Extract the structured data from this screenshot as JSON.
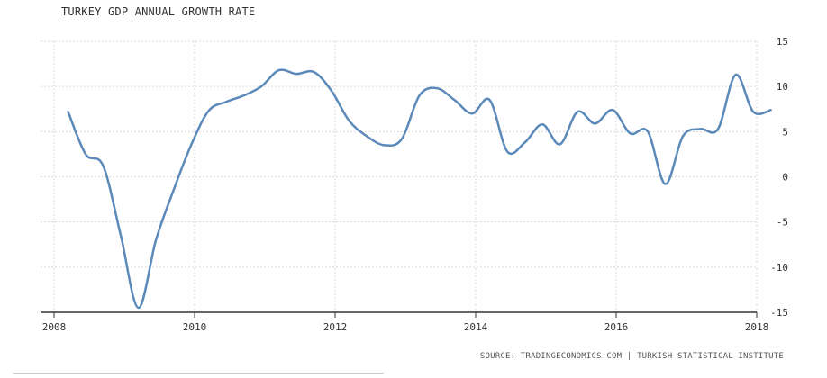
{
  "title": "TURKEY GDP ANNUAL GROWTH RATE",
  "source": "SOURCE: TRADINGECONOMICS.COM | TURKISH STATISTICAL INSTITUTE",
  "colors": {
    "line": "#5b89b9",
    "grid": "#d9d9d9",
    "axis": "#333333"
  },
  "chart_data": {
    "type": "line",
    "title": "TURKEY GDP ANNUAL GROWTH RATE",
    "xlabel": "",
    "ylabel": "",
    "xlim": [
      2008,
      2018.3
    ],
    "ylim": [
      -15,
      15
    ],
    "x_ticks": [
      2008,
      2010,
      2012,
      2014,
      2016,
      2018
    ],
    "y_ticks": [
      15,
      10,
      5,
      0,
      -5,
      -10,
      -15
    ],
    "y_axis_position": "right",
    "grid": "dashed",
    "series": [
      {
        "x": [
          2008.2,
          2008.45,
          2008.7,
          2008.95,
          2009.2,
          2009.45,
          2009.7,
          2009.95,
          2010.2,
          2010.45,
          2010.7,
          2010.95,
          2011.2,
          2011.45,
          2011.7,
          2011.95,
          2012.2,
          2012.45,
          2012.7,
          2012.95,
          2013.2,
          2013.45,
          2013.7,
          2013.95,
          2014.2,
          2014.45,
          2014.7,
          2014.95,
          2015.2,
          2015.45,
          2015.7,
          2015.95,
          2016.2,
          2016.45,
          2016.7,
          2016.95,
          2017.2,
          2017.45,
          2017.7,
          2017.95,
          2018.2
        ],
        "values": [
          7.2,
          2.5,
          1.2,
          -6.5,
          -14.5,
          -7,
          -1.5,
          3.5,
          7.3,
          8.3,
          9.0,
          10.0,
          11.8,
          11.4,
          11.6,
          9.5,
          6.2,
          4.5,
          3.5,
          4.2,
          9.0,
          9.8,
          8.5,
          7.0,
          8.5,
          2.8,
          3.8,
          5.8,
          3.6,
          7.2,
          5.9,
          7.4,
          4.8,
          5.0,
          -0.8,
          4.5,
          5.3,
          5.3,
          11.3,
          7.2,
          7.4
        ]
      }
    ]
  }
}
